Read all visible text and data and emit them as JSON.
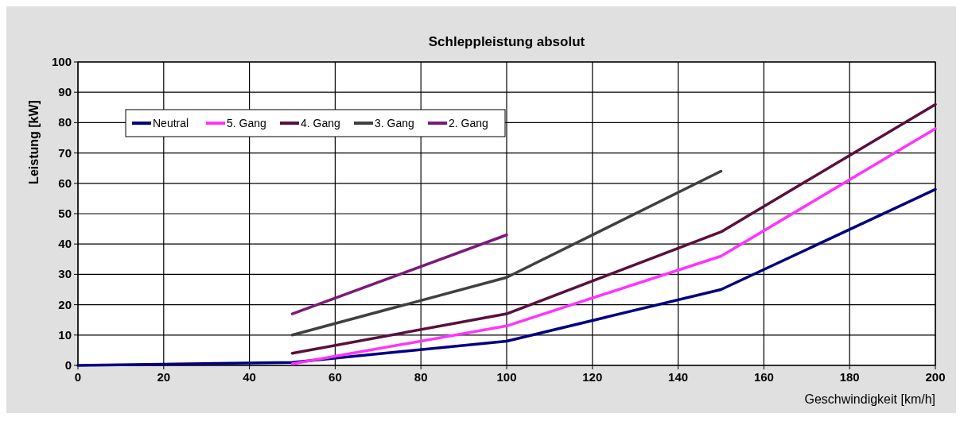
{
  "chart_data": {
    "type": "line",
    "title": "Schleppleistung absolut",
    "xlabel": "Geschwindigkeit [km/h]",
    "ylabel": "Leistung  [kW]",
    "xlim": [
      0,
      200
    ],
    "xticks": [
      0,
      20,
      40,
      60,
      80,
      100,
      120,
      140,
      160,
      180,
      200
    ],
    "ylim": [
      0,
      100
    ],
    "yticks": [
      0,
      10,
      20,
      30,
      40,
      50,
      60,
      70,
      80,
      90,
      100
    ],
    "grid": true,
    "legend": "top left",
    "marker": "none",
    "line_style": "solid",
    "series": [
      {
        "name": "Neutral",
        "color": "#000080",
        "x": [
          0,
          50,
          100,
          150,
          200
        ],
        "values": [
          0,
          1,
          8,
          25,
          58
        ]
      },
      {
        "name": "5. Gang",
        "color": "#ff33ff",
        "x": [
          50,
          100,
          150,
          200
        ],
        "values": [
          0.5,
          13,
          36,
          78
        ]
      },
      {
        "name": "4. Gang",
        "color": "#5a0f3c",
        "x": [
          50,
          100,
          150,
          200
        ],
        "values": [
          4,
          17,
          44,
          86
        ]
      },
      {
        "name": "3. Gang",
        "color": "#404040",
        "x": [
          50,
          100,
          150
        ],
        "values": [
          10,
          29,
          64
        ]
      },
      {
        "name": "2. Gang",
        "color": "#7a1a7a",
        "x": [
          50,
          100
        ],
        "values": [
          17,
          43
        ]
      }
    ]
  }
}
